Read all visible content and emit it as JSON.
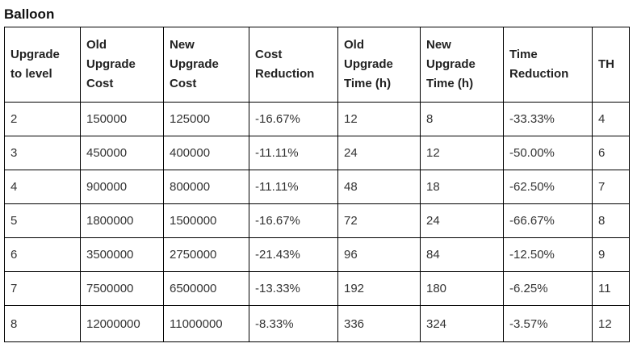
{
  "title": "Balloon",
  "table": {
    "headers": [
      [
        "Upgrade",
        "to level"
      ],
      [
        "Old",
        "Upgrade",
        "Cost"
      ],
      [
        "New",
        "Upgrade",
        "Cost"
      ],
      [
        "Cost",
        "Reduction"
      ],
      [
        "Old",
        "Upgrade",
        "Time (h)"
      ],
      [
        "New",
        "Upgrade",
        "Time (h)"
      ],
      [
        "Time",
        "Reduction"
      ],
      [
        "TH"
      ]
    ],
    "rows": [
      [
        "2",
        "150000",
        "125000",
        "-16.67%",
        "12",
        "8",
        "-33.33%",
        "4"
      ],
      [
        "3",
        "450000",
        "400000",
        "-11.11%",
        "24",
        "12",
        "-50.00%",
        "6"
      ],
      [
        "4",
        "900000",
        "800000",
        "-11.11%",
        "48",
        "18",
        "-62.50%",
        "7"
      ],
      [
        "5",
        "1800000",
        "1500000",
        "-16.67%",
        "72",
        "24",
        "-66.67%",
        "8"
      ],
      [
        "6",
        "3500000",
        "2750000",
        "-21.43%",
        "96",
        "84",
        "-12.50%",
        "9"
      ],
      [
        "7",
        "7500000",
        "6500000",
        "-13.33%",
        "192",
        "180",
        "-6.25%",
        "11"
      ],
      [
        "8",
        "12000000",
        "11000000",
        "-8.33%",
        "336",
        "324",
        "-3.57%",
        "12"
      ]
    ]
  }
}
